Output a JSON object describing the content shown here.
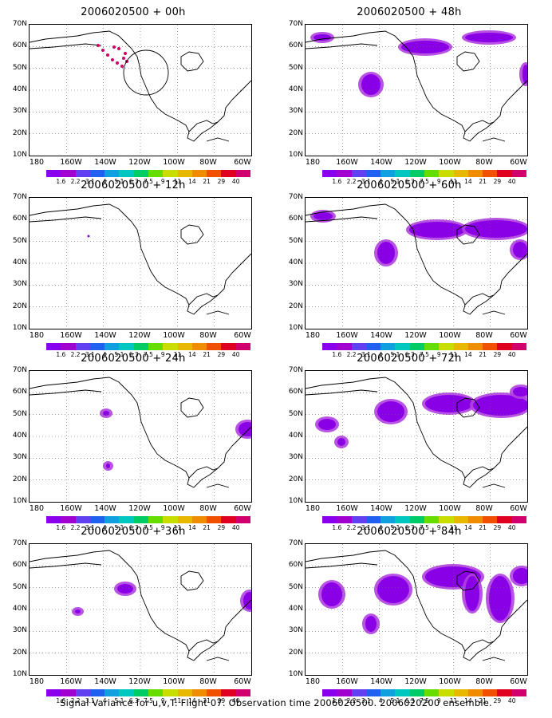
{
  "panels": [
    {
      "title": "2006020500 + 00h",
      "col": 0,
      "row": 0,
      "blobs": [],
      "dots": true,
      "circle": true,
      "speck": false
    },
    {
      "title": "2006020500 + 48h",
      "col": 1,
      "row": 0,
      "blobs": [
        [
          10,
          12,
          22,
          8
        ],
        [
          70,
          62,
          24,
          26
        ],
        [
          120,
          20,
          60,
          16
        ],
        [
          200,
          10,
          60,
          12
        ],
        [
          272,
          50,
          8,
          24
        ]
      ],
      "dots": false,
      "circle": false,
      "speck": false
    },
    {
      "title": "2006020500 + 12h",
      "col": 0,
      "row": 1,
      "blobs": [],
      "dots": false,
      "circle": false,
      "speck": true
    },
    {
      "title": "2006020500 + 60h",
      "col": 1,
      "row": 1,
      "blobs": [
        [
          10,
          18,
          24,
          10
        ],
        [
          90,
          55,
          22,
          28
        ],
        [
          130,
          30,
          70,
          20
        ],
        [
          200,
          28,
          78,
          22
        ],
        [
          260,
          55,
          18,
          20
        ]
      ],
      "dots": false,
      "circle": false,
      "speck": false
    },
    {
      "title": "2006020500 + 24h",
      "col": 0,
      "row": 2,
      "blobs": [
        [
          92,
          50,
          8,
          6
        ],
        [
          96,
          116,
          5,
          6
        ],
        [
          262,
          64,
          22,
          18
        ]
      ],
      "dots": false,
      "circle": false,
      "speck": false
    },
    {
      "title": "2006020500 + 72h",
      "col": 1,
      "row": 2,
      "blobs": [
        [
          16,
          60,
          22,
          14
        ],
        [
          40,
          84,
          10,
          10
        ],
        [
          90,
          38,
          34,
          26
        ],
        [
          150,
          30,
          60,
          22
        ],
        [
          210,
          30,
          70,
          26
        ],
        [
          260,
          20,
          20,
          12
        ]
      ],
      "dots": false,
      "circle": false,
      "speck": false
    },
    {
      "title": "2006020500 + 36h",
      "col": 0,
      "row": 3,
      "blobs": [
        [
          110,
          50,
          20,
          12
        ],
        [
          57,
          82,
          7,
          5
        ],
        [
          268,
          60,
          16,
          22
        ]
      ],
      "dots": false,
      "circle": false,
      "speck": false
    },
    {
      "title": "2006020500 + 84h",
      "col": 1,
      "row": 3,
      "blobs": [
        [
          20,
          48,
          26,
          30
        ],
        [
          90,
          40,
          40,
          34
        ],
        [
          75,
          90,
          14,
          20
        ],
        [
          150,
          28,
          70,
          26
        ],
        [
          200,
          40,
          18,
          44
        ],
        [
          230,
          40,
          28,
          56
        ],
        [
          260,
          30,
          22,
          20
        ]
      ],
      "dots": false,
      "circle": false,
      "speck": false
    }
  ],
  "y_labels": [
    "70N",
    "60N",
    "50N",
    "40N",
    "30N",
    "20N",
    "10N"
  ],
  "x_labels": [
    "180",
    "160W",
    "140W",
    "120W",
    "100W",
    "80W",
    "60W"
  ],
  "colorbar": {
    "colors": [
      "#8800ee",
      "#a000d0",
      "#6040f0",
      "#2060f0",
      "#10a0e0",
      "#00c8c0",
      "#00cc66",
      "#66dd00",
      "#c8dd00",
      "#e8b800",
      "#f08c00",
      "#f05000",
      "#e00020",
      "#d0006e"
    ],
    "labels": [
      "1.6",
      "2.2",
      "3.1",
      "4",
      "5.1",
      "6.3",
      "7.5",
      "9",
      "11",
      "14",
      "21",
      "29",
      "40"
    ]
  },
  "footer": "Signal Variance for u,v,T. Flight 07. Observation time 2006020500. 2006020200 ensemble."
}
